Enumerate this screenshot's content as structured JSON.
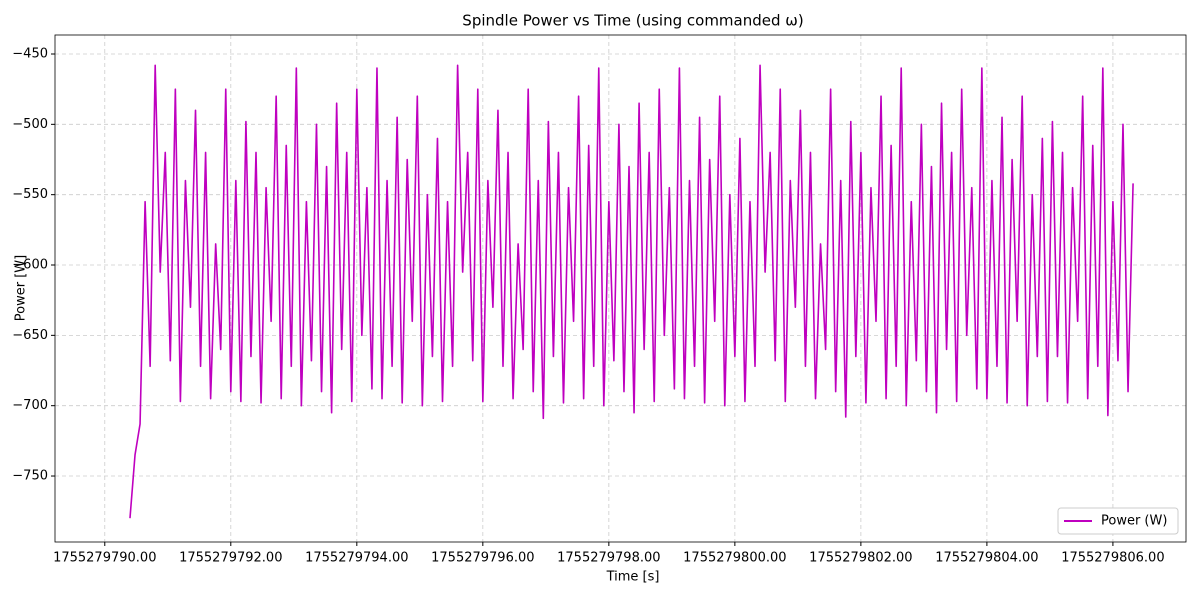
{
  "chart_data": {
    "type": "line",
    "title": "Spindle Power vs Time (using commanded ω)",
    "x_label": "Time [s]",
    "y_label": "Power [W]",
    "grid": true,
    "legend": "lower right",
    "xlim": [
      1755279789.21,
      1755279807.16
    ],
    "ylim": [
      -796.9,
      -436.5
    ],
    "xticks": [
      {
        "value": 1755279790,
        "label": "1755279790.00"
      },
      {
        "value": 1755279792,
        "label": "1755279792.00"
      },
      {
        "value": 1755279794,
        "label": "1755279794.00"
      },
      {
        "value": 1755279796,
        "label": "1755279796.00"
      },
      {
        "value": 1755279798,
        "label": "1755279798.00"
      },
      {
        "value": 1755279800,
        "label": "1755279800.00"
      },
      {
        "value": 1755279802,
        "label": "1755279802.00"
      },
      {
        "value": 1755279804,
        "label": "1755279804.00"
      },
      {
        "value": 1755279806,
        "label": "1755279806.00"
      }
    ],
    "yticks": [
      {
        "value": -450,
        "label": "−450"
      },
      {
        "value": -500,
        "label": "−500"
      },
      {
        "value": -550,
        "label": "−550"
      },
      {
        "value": -600,
        "label": "−600"
      },
      {
        "value": -650,
        "label": "−650"
      },
      {
        "value": -700,
        "label": "−700"
      },
      {
        "value": -750,
        "label": "−750"
      }
    ],
    "x": [
      1755279790.4,
      1755279790.48,
      1755279790.56,
      1755279790.64,
      1755279790.72,
      1755279790.8,
      1755279790.88,
      1755279790.96,
      1755279791.04,
      1755279791.12,
      1755279791.2,
      1755279791.28,
      1755279791.36,
      1755279791.44,
      1755279791.52,
      1755279791.6,
      1755279791.68,
      1755279791.76,
      1755279791.84,
      1755279791.92,
      1755279792.0,
      1755279792.08,
      1755279792.16,
      1755279792.24,
      1755279792.32,
      1755279792.4,
      1755279792.48,
      1755279792.56,
      1755279792.64,
      1755279792.72,
      1755279792.8,
      1755279792.88,
      1755279792.96,
      1755279793.04,
      1755279793.12,
      1755279793.2,
      1755279793.28,
      1755279793.36,
      1755279793.44,
      1755279793.52,
      1755279793.6,
      1755279793.68,
      1755279793.76,
      1755279793.84,
      1755279793.92,
      1755279794.0,
      1755279794.08,
      1755279794.16,
      1755279794.24,
      1755279794.32,
      1755279794.4,
      1755279794.48,
      1755279794.56,
      1755279794.64,
      1755279794.72,
      1755279794.8,
      1755279794.88,
      1755279794.96,
      1755279795.04,
      1755279795.12,
      1755279795.2,
      1755279795.28,
      1755279795.36,
      1755279795.44,
      1755279795.52,
      1755279795.6,
      1755279795.68,
      1755279795.76,
      1755279795.84,
      1755279795.92,
      1755279796.0,
      1755279796.08,
      1755279796.16,
      1755279796.24,
      1755279796.32,
      1755279796.4,
      1755279796.48,
      1755279796.56,
      1755279796.64,
      1755279796.72,
      1755279796.8,
      1755279796.88,
      1755279796.96,
      1755279797.04,
      1755279797.12,
      1755279797.2,
      1755279797.28,
      1755279797.36,
      1755279797.44,
      1755279797.52,
      1755279797.6,
      1755279797.68,
      1755279797.76,
      1755279797.84,
      1755279797.92,
      1755279798.0,
      1755279798.08,
      1755279798.16,
      1755279798.24,
      1755279798.32,
      1755279798.4,
      1755279798.48,
      1755279798.56,
      1755279798.64,
      1755279798.72,
      1755279798.8,
      1755279798.88,
      1755279798.96,
      1755279799.04,
      1755279799.12,
      1755279799.2,
      1755279799.28,
      1755279799.36,
      1755279799.44,
      1755279799.52,
      1755279799.6,
      1755279799.68,
      1755279799.76,
      1755279799.84,
      1755279799.92,
      1755279800.0,
      1755279800.08,
      1755279800.16,
      1755279800.24,
      1755279800.32,
      1755279800.4,
      1755279800.48,
      1755279800.56,
      1755279800.64,
      1755279800.72,
      1755279800.8,
      1755279800.88,
      1755279800.96,
      1755279801.04,
      1755279801.12,
      1755279801.2,
      1755279801.28,
      1755279801.36,
      1755279801.44,
      1755279801.52,
      1755279801.6,
      1755279801.68,
      1755279801.76,
      1755279801.84,
      1755279801.92,
      1755279802.0,
      1755279802.08,
      1755279802.16,
      1755279802.24,
      1755279802.32,
      1755279802.4,
      1755279802.48,
      1755279802.56,
      1755279802.64,
      1755279802.72,
      1755279802.8,
      1755279802.88,
      1755279802.96,
      1755279803.04,
      1755279803.12,
      1755279803.2,
      1755279803.28,
      1755279803.36,
      1755279803.44,
      1755279803.52,
      1755279803.6,
      1755279803.68,
      1755279803.76,
      1755279803.84,
      1755279803.92,
      1755279804.0,
      1755279804.08,
      1755279804.16,
      1755279804.24,
      1755279804.32,
      1755279804.4,
      1755279804.48,
      1755279804.56,
      1755279804.64,
      1755279804.72,
      1755279804.8,
      1755279804.88,
      1755279804.96,
      1755279805.04,
      1755279805.12,
      1755279805.2,
      1755279805.28,
      1755279805.36,
      1755279805.44,
      1755279805.52,
      1755279805.6,
      1755279805.68,
      1755279805.76,
      1755279805.84,
      1755279805.92,
      1755279806.0,
      1755279806.08,
      1755279806.16,
      1755279806.24,
      1755279806.32
    ],
    "series": [
      {
        "name": "Power (W)",
        "color": "#bf00bf",
        "values": [
          -780,
          -735,
          -713,
          -555,
          -672,
          -458,
          -605,
          -520,
          -668,
          -475,
          -697,
          -540,
          -630,
          -490,
          -672,
          -520,
          -695,
          -585,
          -660,
          -475,
          -690,
          -540,
          -697,
          -498,
          -665,
          -520,
          -698,
          -545,
          -640,
          -480,
          -695,
          -515,
          -672,
          -460,
          -700,
          -555,
          -668,
          -500,
          -690,
          -530,
          -705,
          -485,
          -660,
          -520,
          -697,
          -475,
          -650,
          -545,
          -688,
          -460,
          -695,
          -540,
          -672,
          -495,
          -698,
          -525,
          -640,
          -480,
          -700,
          -550,
          -665,
          -510,
          -697,
          -555,
          -672,
          -458,
          -605,
          -520,
          -668,
          -475,
          -697,
          -540,
          -630,
          -490,
          -672,
          -520,
          -695,
          -585,
          -660,
          -475,
          -690,
          -540,
          -709,
          -498,
          -665,
          -520,
          -698,
          -545,
          -640,
          -480,
          -695,
          -515,
          -672,
          -460,
          -700,
          -555,
          -668,
          -500,
          -690,
          -530,
          -705,
          -485,
          -660,
          -520,
          -697,
          -475,
          -650,
          -545,
          -688,
          -460,
          -695,
          -540,
          -672,
          -495,
          -698,
          -525,
          -640,
          -480,
          -700,
          -550,
          -665,
          -510,
          -697,
          -555,
          -672,
          -458,
          -605,
          -520,
          -668,
          -475,
          -697,
          -540,
          -630,
          -490,
          -672,
          -520,
          -695,
          -585,
          -660,
          -475,
          -690,
          -540,
          -708,
          -498,
          -665,
          -520,
          -698,
          -545,
          -640,
          -480,
          -695,
          -515,
          -672,
          -460,
          -700,
          -555,
          -668,
          -500,
          -690,
          -530,
          -705,
          -485,
          -660,
          -520,
          -697,
          -475,
          -650,
          -545,
          -688,
          -460,
          -695,
          -540,
          -672,
          -495,
          -698,
          -525,
          -640,
          -480,
          -700,
          -550,
          -665,
          -510,
          -697,
          -498,
          -665,
          -520,
          -698,
          -545,
          -640,
          -480,
          -695,
          -515,
          -672,
          -460,
          -707,
          -555,
          -668,
          -500,
          -690,
          -542
        ]
      }
    ]
  }
}
